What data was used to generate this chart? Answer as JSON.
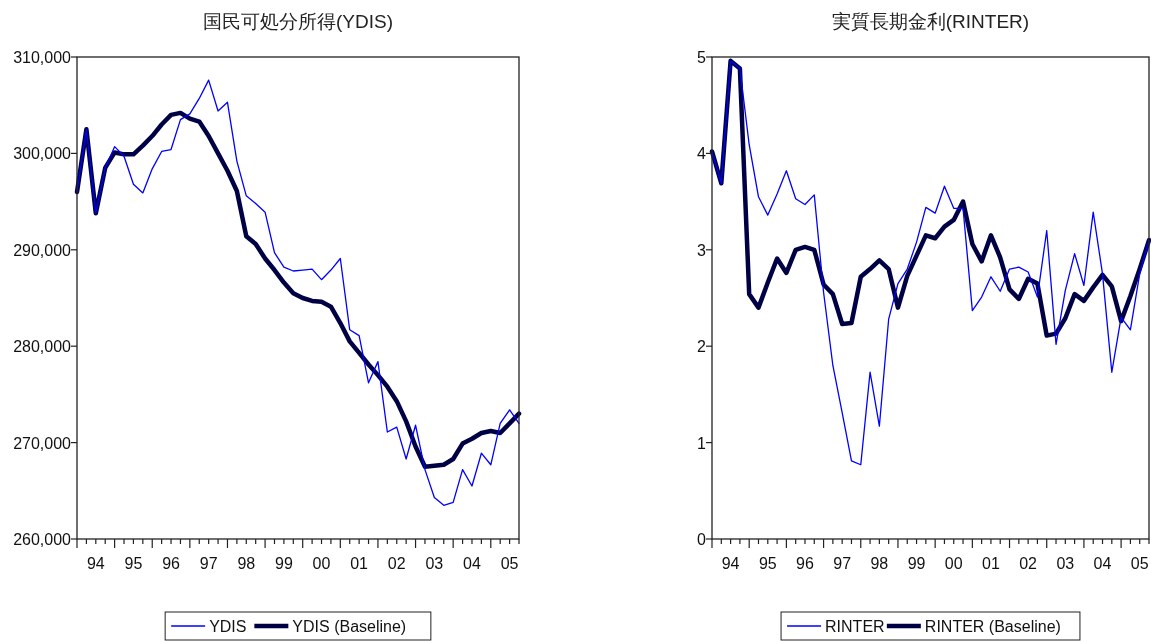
{
  "chart_data": [
    {
      "type": "line",
      "title": "国民可処分所得(YDIS)",
      "legend": "bottom",
      "grid": false,
      "x": [
        "1994-01",
        "1994-04",
        "1994-07",
        "1994-10",
        "1995-01",
        "1995-04",
        "1995-07",
        "1995-10",
        "1996-01",
        "1996-04",
        "1996-07",
        "1996-10",
        "1997-01",
        "1997-04",
        "1997-07",
        "1997-10",
        "1998-01",
        "1998-04",
        "1998-07",
        "1998-10",
        "1999-01",
        "1999-04",
        "1999-07",
        "1999-10",
        "2000-01",
        "2000-04",
        "2000-07",
        "2000-10",
        "2001-01",
        "2001-04",
        "2001-07",
        "2001-10",
        "2002-01",
        "2002-04",
        "2002-07",
        "2002-10",
        "2003-01",
        "2003-04",
        "2003-07",
        "2003-10",
        "2004-01",
        "2004-04",
        "2004-07",
        "2004-10",
        "2005-01",
        "2005-04",
        "2005-07",
        "2005-10"
      ],
      "xlim": [
        "1994-01",
        "2005-10"
      ],
      "xticks": [
        {
          "value": "1994-01",
          "label": null
        },
        {
          "value": "1994-04",
          "label": null
        },
        {
          "value": "1994-07",
          "label": "94"
        },
        {
          "value": "1994-10",
          "label": null
        },
        {
          "value": "1995-01",
          "label": null
        },
        {
          "value": "1995-04",
          "label": null
        },
        {
          "value": "1995-07",
          "label": "95"
        },
        {
          "value": "1995-10",
          "label": null
        },
        {
          "value": "1996-01",
          "label": null
        },
        {
          "value": "1996-04",
          "label": null
        },
        {
          "value": "1996-07",
          "label": "96"
        },
        {
          "value": "1996-10",
          "label": null
        },
        {
          "value": "1997-01",
          "label": null
        },
        {
          "value": "1997-04",
          "label": null
        },
        {
          "value": "1997-07",
          "label": "97"
        },
        {
          "value": "1997-10",
          "label": null
        },
        {
          "value": "1998-01",
          "label": null
        },
        {
          "value": "1998-04",
          "label": null
        },
        {
          "value": "1998-07",
          "label": "98"
        },
        {
          "value": "1998-10",
          "label": null
        },
        {
          "value": "1999-01",
          "label": null
        },
        {
          "value": "1999-04",
          "label": null
        },
        {
          "value": "1999-07",
          "label": "99"
        },
        {
          "value": "1999-10",
          "label": null
        },
        {
          "value": "2000-01",
          "label": null
        },
        {
          "value": "2000-04",
          "label": null
        },
        {
          "value": "2000-07",
          "label": "00"
        },
        {
          "value": "2000-10",
          "label": null
        },
        {
          "value": "2001-01",
          "label": null
        },
        {
          "value": "2001-04",
          "label": null
        },
        {
          "value": "2001-07",
          "label": "01"
        },
        {
          "value": "2001-10",
          "label": null
        },
        {
          "value": "2002-01",
          "label": null
        },
        {
          "value": "2002-04",
          "label": null
        },
        {
          "value": "2002-07",
          "label": "02"
        },
        {
          "value": "2002-10",
          "label": null
        },
        {
          "value": "2003-01",
          "label": null
        },
        {
          "value": "2003-04",
          "label": null
        },
        {
          "value": "2003-07",
          "label": "03"
        },
        {
          "value": "2003-10",
          "label": null
        },
        {
          "value": "2004-01",
          "label": null
        },
        {
          "value": "2004-04",
          "label": null
        },
        {
          "value": "2004-07",
          "label": "04"
        },
        {
          "value": "2004-10",
          "label": null
        },
        {
          "value": "2005-01",
          "label": null
        },
        {
          "value": "2005-04",
          "label": null
        },
        {
          "value": "2005-07",
          "label": "05"
        },
        {
          "value": "2005-10",
          "label": null
        }
      ],
      "ylim": [
        260000,
        310000
      ],
      "yticks": [
        {
          "value": 260000,
          "label": "260,000"
        },
        {
          "value": 270000,
          "label": "270,000"
        },
        {
          "value": 280000,
          "label": "280,000"
        },
        {
          "value": 290000,
          "label": "290,000"
        },
        {
          "value": 300000,
          "label": "300,000"
        },
        {
          "value": 310000,
          "label": "310,000"
        }
      ],
      "series": [
        {
          "name": "YDIS",
          "color": "#0000ff",
          "values": [
            296000,
            302500,
            293800,
            298500,
            300700,
            299700,
            296800,
            295900,
            298400,
            300200,
            300400,
            303500,
            304100,
            305700,
            307600,
            304400,
            305300,
            299200,
            295600,
            294800,
            293900,
            289700,
            288200,
            287800,
            287900,
            288000,
            286900,
            287900,
            289100,
            281700,
            281100,
            276200,
            278400,
            271100,
            271600,
            268300,
            271800,
            267200,
            264300,
            263500,
            263800,
            267200,
            265500,
            268900,
            267700,
            272000,
            273400,
            272000
          ]
        },
        {
          "name": "YDIS (Baseline)",
          "color": "#000044",
          "values": [
            296000,
            302500,
            293800,
            298500,
            300100,
            299900,
            299900,
            300800,
            301800,
            303000,
            304000,
            304200,
            303600,
            303300,
            301800,
            300000,
            298200,
            296100,
            291400,
            290600,
            289100,
            287900,
            286600,
            285500,
            285000,
            284700,
            284600,
            284100,
            282400,
            280500,
            279300,
            278100,
            277000,
            275800,
            274300,
            272200,
            269600,
            267500,
            267600,
            267700,
            268300,
            269900,
            270400,
            271000,
            271200,
            271000,
            272000,
            273000
          ]
        }
      ]
    },
    {
      "type": "line",
      "title": "実質長期金利(RINTER)",
      "legend": "bottom",
      "grid": false,
      "x": [
        "1994-01",
        "1994-04",
        "1994-07",
        "1994-10",
        "1995-01",
        "1995-04",
        "1995-07",
        "1995-10",
        "1996-01",
        "1996-04",
        "1996-07",
        "1996-10",
        "1997-01",
        "1997-04",
        "1997-07",
        "1997-10",
        "1998-01",
        "1998-04",
        "1998-07",
        "1998-10",
        "1999-01",
        "1999-04",
        "1999-07",
        "1999-10",
        "2000-01",
        "2000-04",
        "2000-07",
        "2000-10",
        "2001-01",
        "2001-04",
        "2001-07",
        "2001-10",
        "2002-01",
        "2002-04",
        "2002-07",
        "2002-10",
        "2003-01",
        "2003-04",
        "2003-07",
        "2003-10",
        "2004-01",
        "2004-04",
        "2004-07",
        "2004-10",
        "2005-01",
        "2005-04",
        "2005-07",
        "2005-10"
      ],
      "xlim": [
        "1994-01",
        "2005-10"
      ],
      "xticks": [
        {
          "value": "1994-01",
          "label": null
        },
        {
          "value": "1994-04",
          "label": null
        },
        {
          "value": "1994-07",
          "label": "94"
        },
        {
          "value": "1994-10",
          "label": null
        },
        {
          "value": "1995-01",
          "label": null
        },
        {
          "value": "1995-04",
          "label": null
        },
        {
          "value": "1995-07",
          "label": "95"
        },
        {
          "value": "1995-10",
          "label": null
        },
        {
          "value": "1996-01",
          "label": null
        },
        {
          "value": "1996-04",
          "label": null
        },
        {
          "value": "1996-07",
          "label": "96"
        },
        {
          "value": "1996-10",
          "label": null
        },
        {
          "value": "1997-01",
          "label": null
        },
        {
          "value": "1997-04",
          "label": null
        },
        {
          "value": "1997-07",
          "label": "97"
        },
        {
          "value": "1997-10",
          "label": null
        },
        {
          "value": "1998-01",
          "label": null
        },
        {
          "value": "1998-04",
          "label": null
        },
        {
          "value": "1998-07",
          "label": "98"
        },
        {
          "value": "1998-10",
          "label": null
        },
        {
          "value": "1999-01",
          "label": null
        },
        {
          "value": "1999-04",
          "label": null
        },
        {
          "value": "1999-07",
          "label": "99"
        },
        {
          "value": "1999-10",
          "label": null
        },
        {
          "value": "2000-01",
          "label": null
        },
        {
          "value": "2000-04",
          "label": null
        },
        {
          "value": "2000-07",
          "label": "00"
        },
        {
          "value": "2000-10",
          "label": null
        },
        {
          "value": "2001-01",
          "label": null
        },
        {
          "value": "2001-04",
          "label": null
        },
        {
          "value": "2001-07",
          "label": "01"
        },
        {
          "value": "2001-10",
          "label": null
        },
        {
          "value": "2002-01",
          "label": null
        },
        {
          "value": "2002-04",
          "label": null
        },
        {
          "value": "2002-07",
          "label": "02"
        },
        {
          "value": "2002-10",
          "label": null
        },
        {
          "value": "2003-01",
          "label": null
        },
        {
          "value": "2003-04",
          "label": null
        },
        {
          "value": "2003-07",
          "label": "03"
        },
        {
          "value": "2003-10",
          "label": null
        },
        {
          "value": "2004-01",
          "label": null
        },
        {
          "value": "2004-04",
          "label": null
        },
        {
          "value": "2004-07",
          "label": "04"
        },
        {
          "value": "2004-10",
          "label": null
        },
        {
          "value": "2005-01",
          "label": null
        },
        {
          "value": "2005-04",
          "label": null
        },
        {
          "value": "2005-07",
          "label": "05"
        },
        {
          "value": "2005-10",
          "label": null
        }
      ],
      "ylim": [
        0,
        5
      ],
      "yticks": [
        0,
        1,
        2,
        3,
        4,
        5
      ],
      "series": [
        {
          "name": "RINTER",
          "color": "#0000ff",
          "values": [
            4.02,
            3.69,
            4.96,
            4.88,
            4.09,
            3.55,
            3.36,
            3.58,
            3.82,
            3.53,
            3.47,
            3.57,
            2.56,
            1.8,
            1.31,
            0.81,
            0.77,
            1.73,
            1.17,
            2.28,
            2.65,
            2.8,
            3.08,
            3.44,
            3.38,
            3.66,
            3.43,
            3.43,
            2.37,
            2.51,
            2.72,
            2.57,
            2.8,
            2.82,
            2.77,
            2.51,
            3.2,
            2.02,
            2.58,
            2.96,
            2.63,
            3.39,
            2.75,
            1.73,
            2.3,
            2.17,
            2.75,
            3.1
          ]
        },
        {
          "name": "RINTER (Baseline)",
          "color": "#000044",
          "values": [
            4.02,
            3.69,
            4.96,
            4.88,
            2.54,
            2.4,
            2.66,
            2.91,
            2.76,
            3.0,
            3.03,
            3.0,
            2.64,
            2.54,
            2.23,
            2.24,
            2.72,
            2.8,
            2.89,
            2.8,
            2.4,
            2.73,
            2.94,
            3.15,
            3.12,
            3.24,
            3.31,
            3.5,
            3.06,
            2.88,
            3.15,
            2.92,
            2.59,
            2.49,
            2.7,
            2.65,
            2.11,
            2.13,
            2.29,
            2.54,
            2.47,
            2.61,
            2.74,
            2.62,
            2.26,
            2.52,
            2.8,
            3.1
          ]
        }
      ]
    }
  ]
}
